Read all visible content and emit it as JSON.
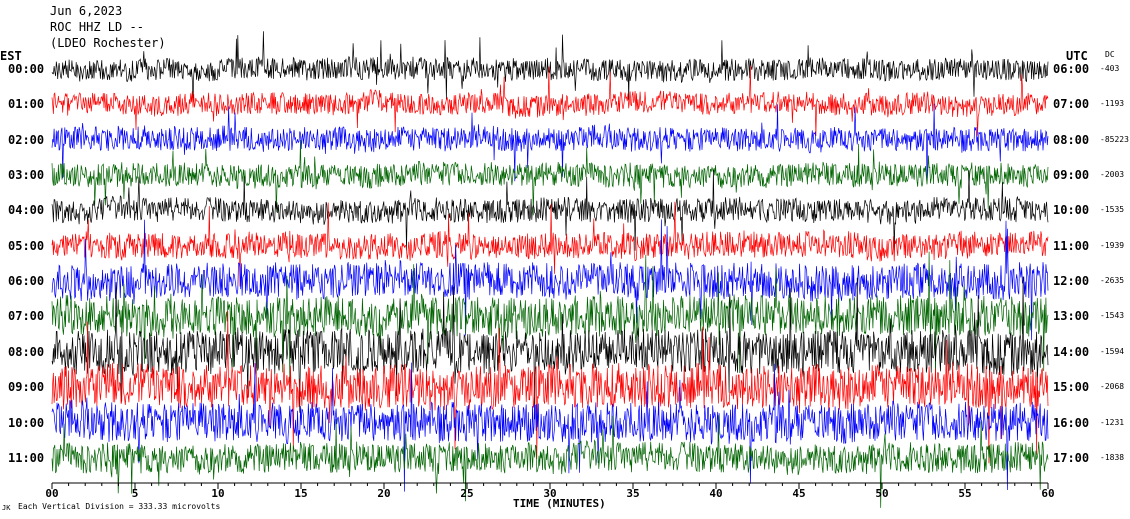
{
  "header": {
    "date": "Jun 6,2023",
    "station": "ROC HHZ LD --",
    "location": "(LDEO Rochester)"
  },
  "left_zone": "EST",
  "right_zone": "UTC",
  "dc_header": "DC",
  "footer": {
    "scale_note": "Each Vertical Division =  333.33 microvolts",
    "corner_mark": "JK"
  },
  "chart_data": {
    "type": "line",
    "xlabel": "TIME (MINUTES)",
    "xlim": [
      0,
      60
    ],
    "x_ticks": [
      "00",
      "5",
      "10",
      "15",
      "20",
      "25",
      "30",
      "35",
      "40",
      "45",
      "50",
      "55",
      "60"
    ],
    "colors": [
      "#000000",
      "#ff0000",
      "#0000ff",
      "#006400"
    ],
    "rows": [
      {
        "est": "00:00",
        "utc": "06:00",
        "dc": "-403"
      },
      {
        "est": "01:00",
        "utc": "07:00",
        "dc": "-1193"
      },
      {
        "est": "02:00",
        "utc": "08:00",
        "dc": "-85223"
      },
      {
        "est": "03:00",
        "utc": "09:00",
        "dc": "-2003"
      },
      {
        "est": "04:00",
        "utc": "10:00",
        "dc": "-1535"
      },
      {
        "est": "05:00",
        "utc": "11:00",
        "dc": "-1939"
      },
      {
        "est": "06:00",
        "utc": "12:00",
        "dc": "-2635"
      },
      {
        "est": "07:00",
        "utc": "13:00",
        "dc": "-1543"
      },
      {
        "est": "08:00",
        "utc": "14:00",
        "dc": "-1594"
      },
      {
        "est": "09:00",
        "utc": "15:00",
        "dc": "-2068"
      },
      {
        "est": "10:00",
        "utc": "16:00",
        "dc": "-1231"
      },
      {
        "est": "11:00",
        "utc": "17:00",
        "dc": "-1838"
      }
    ]
  }
}
